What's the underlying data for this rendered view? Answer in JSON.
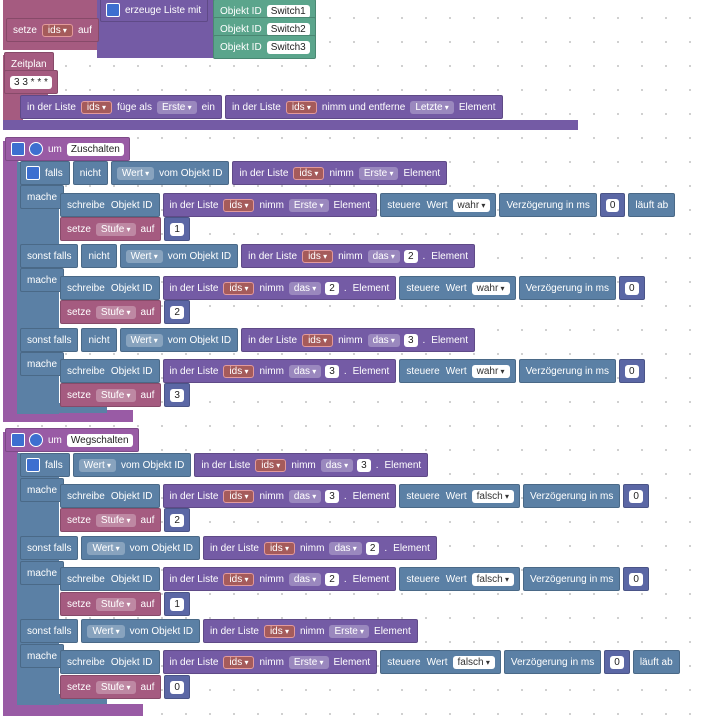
{
  "lines": [
    [
      "setze",
      "ids",
      "auf"
    ],
    [
      "erzeuge Liste mit"
    ],
    [
      "Objekt ID",
      "Switch1"
    ],
    [
      "Objekt ID",
      "Switch2"
    ],
    [
      "Objekt ID",
      "Switch3"
    ],
    [
      "Zeitplan"
    ],
    [
      "3 3 * * *"
    ],
    [
      "in der Liste",
      "ids",
      "füge als",
      "Erste",
      "ein",
      "in der Liste",
      "ids",
      "nimm und entferne",
      "Letzte",
      "Element"
    ],
    [
      "um",
      "Zuschalten"
    ],
    [
      "falls",
      "nicht",
      "Wert",
      "vom Objekt ID",
      "in der Liste",
      "ids",
      "nimm",
      "Erste",
      "Element"
    ],
    [
      "mache"
    ],
    [
      "schreibe",
      "Objekt ID",
      "in der Liste",
      "ids",
      "nimm",
      "Erste",
      "Element",
      "steuere",
      "Wert",
      "wahr",
      "Verzögerung in ms",
      0,
      "läuft ab"
    ],
    [
      "setze",
      "Stufe",
      "auf",
      1
    ],
    [
      "sonst falls",
      "nicht",
      "Wert",
      "vom Objekt ID",
      "in der Liste",
      "ids",
      "nimm",
      "das",
      2,
      ".",
      "Element"
    ],
    [
      "mache"
    ],
    [
      "schreibe",
      "Objekt ID",
      "in der Liste",
      "ids",
      "nimm",
      "das",
      2,
      ".",
      "Element",
      "steuere",
      "Wert",
      "wahr",
      "Verzögerung in ms",
      0
    ],
    [
      "setze",
      "Stufe",
      "auf",
      2
    ],
    [
      "sonst falls",
      "nicht",
      "Wert",
      "vom Objekt ID",
      "in der Liste",
      "ids",
      "nimm",
      "das",
      3,
      ".",
      "Element"
    ],
    [
      "mache"
    ],
    [
      "schreibe",
      "Objekt ID",
      "in der Liste",
      "ids",
      "nimm",
      "das",
      3,
      ".",
      "Element",
      "steuere",
      "Wert",
      "wahr",
      "Verzögerung in ms",
      0
    ],
    [
      "setze",
      "Stufe",
      "auf",
      3
    ],
    [
      "um",
      "Wegschalten"
    ],
    [
      "falls",
      "Wert",
      "vom Objekt ID",
      "in der Liste",
      "ids",
      "nimm",
      "das",
      3,
      ".",
      "Element"
    ],
    [
      "mache"
    ],
    [
      "schreibe",
      "Objekt ID",
      "in der Liste",
      "ids",
      "nimm",
      "das",
      3,
      ".",
      "Element",
      "steuere",
      "Wert",
      "falsch",
      "Verzögerung in ms",
      0
    ],
    [
      "setze",
      "Stufe",
      "auf",
      2
    ],
    [
      "sonst falls",
      "Wert",
      "vom Objekt ID",
      "in der Liste",
      "ids",
      "nimm",
      "das",
      2,
      ".",
      "Element"
    ],
    [
      "mache"
    ],
    [
      "schreibe",
      "Objekt ID",
      "in der Liste",
      "ids",
      "nimm",
      "das",
      2,
      ".",
      "Element",
      "steuere",
      "Wert",
      "falsch",
      "Verzögerung in ms",
      0
    ],
    [
      "setze",
      "Stufe",
      "auf",
      1
    ],
    [
      "sonst falls",
      "Wert",
      "vom Objekt ID",
      "in der Liste",
      "ids",
      "nimm",
      "Erste",
      "Element"
    ],
    [
      "mache"
    ],
    [
      "schreibe",
      "Objekt ID",
      "in der Liste",
      "ids",
      "nimm",
      "Erste",
      "Element",
      "steuere",
      "Wert",
      "falsch",
      "Verzögerung in ms",
      0,
      "läuft ab"
    ],
    [
      "setze",
      "Stufe",
      "auf",
      0
    ]
  ]
}
